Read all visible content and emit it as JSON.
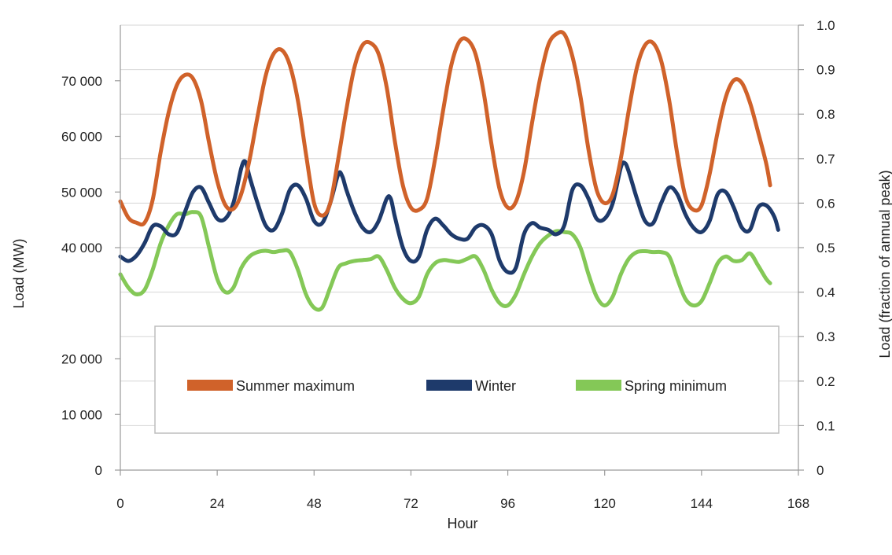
{
  "chart_data": {
    "type": "line",
    "title": "",
    "xlabel": "Hour",
    "ylabel": "Load (MW)",
    "y2label": "Load (fraction of annual peak)",
    "xlim": [
      0,
      168
    ],
    "ylim": [
      0,
      80000
    ],
    "y2lim": [
      0,
      1.0
    ],
    "x_ticks": [
      0,
      24,
      48,
      72,
      96,
      120,
      144,
      168
    ],
    "x_tick_labels": [
      "0",
      "24",
      "48",
      "72",
      "96",
      "120",
      "144",
      "168"
    ],
    "y_ticks": [
      0,
      10000,
      20000,
      40000,
      50000,
      60000,
      70000
    ],
    "y_tick_labels": [
      "0",
      "10 000",
      "20 000",
      "40 000",
      "50 000",
      "60 000",
      "70 000"
    ],
    "y2_ticks": [
      0,
      0.1,
      0.2,
      0.3,
      0.4,
      0.5,
      0.6,
      0.7,
      0.8,
      0.9,
      1.0
    ],
    "y2_tick_labels": [
      "0",
      "0.1",
      "0.2",
      "0.3",
      "0.4",
      "0.5",
      "0.6",
      "0.7",
      "0.8",
      "0.9",
      "1.0"
    ],
    "grid": true,
    "legend_position": "center",
    "series": [
      {
        "name": "Summer maximum",
        "color": "#d0622a",
        "points": [
          [
            0,
            0.604
          ],
          [
            2,
            0.567
          ],
          [
            4,
            0.556
          ],
          [
            6,
            0.556
          ],
          [
            8,
            0.607
          ],
          [
            10,
            0.715
          ],
          [
            12,
            0.805
          ],
          [
            14,
            0.865
          ],
          [
            16,
            0.888
          ],
          [
            18,
            0.88
          ],
          [
            20,
            0.83
          ],
          [
            22,
            0.735
          ],
          [
            24,
            0.65
          ],
          [
            26,
            0.596
          ],
          [
            28,
            0.587
          ],
          [
            30,
            0.622
          ],
          [
            32,
            0.697
          ],
          [
            34,
            0.795
          ],
          [
            36,
            0.886
          ],
          [
            38,
            0.936
          ],
          [
            40,
            0.944
          ],
          [
            42,
            0.91
          ],
          [
            44,
            0.83
          ],
          [
            46,
            0.71
          ],
          [
            48,
            0.6
          ],
          [
            50,
            0.572
          ],
          [
            52,
            0.6
          ],
          [
            54,
            0.7
          ],
          [
            56,
            0.81
          ],
          [
            58,
            0.905
          ],
          [
            60,
            0.955
          ],
          [
            62,
            0.96
          ],
          [
            64,
            0.935
          ],
          [
            66,
            0.86
          ],
          [
            68,
            0.74
          ],
          [
            70,
            0.64
          ],
          [
            72,
            0.59
          ],
          [
            74,
            0.585
          ],
          [
            76,
            0.61
          ],
          [
            78,
            0.7
          ],
          [
            80,
            0.81
          ],
          [
            82,
            0.91
          ],
          [
            84,
            0.963
          ],
          [
            86,
            0.967
          ],
          [
            88,
            0.935
          ],
          [
            90,
            0.85
          ],
          [
            92,
            0.73
          ],
          [
            94,
            0.63
          ],
          [
            96,
            0.59
          ],
          [
            98,
            0.603
          ],
          [
            100,
            0.67
          ],
          [
            102,
            0.78
          ],
          [
            104,
            0.88
          ],
          [
            106,
            0.955
          ],
          [
            108,
            0.98
          ],
          [
            110,
            0.98
          ],
          [
            112,
            0.93
          ],
          [
            114,
            0.84
          ],
          [
            116,
            0.72
          ],
          [
            118,
            0.63
          ],
          [
            120,
            0.6
          ],
          [
            122,
            0.62
          ],
          [
            124,
            0.7
          ],
          [
            126,
            0.81
          ],
          [
            128,
            0.905
          ],
          [
            130,
            0.955
          ],
          [
            132,
            0.96
          ],
          [
            134,
            0.92
          ],
          [
            136,
            0.83
          ],
          [
            138,
            0.71
          ],
          [
            140,
            0.615
          ],
          [
            142,
            0.585
          ],
          [
            144,
            0.595
          ],
          [
            146,
            0.665
          ],
          [
            148,
            0.76
          ],
          [
            150,
            0.838
          ],
          [
            152,
            0.876
          ],
          [
            154,
            0.87
          ],
          [
            156,
            0.826
          ],
          [
            158,
            0.76
          ],
          [
            160,
            0.69
          ],
          [
            161,
            0.64
          ]
        ]
      },
      {
        "name": "Winter",
        "color": "#1e3a6b",
        "points": [
          [
            0,
            0.48
          ],
          [
            2,
            0.47
          ],
          [
            4,
            0.482
          ],
          [
            6,
            0.51
          ],
          [
            8,
            0.548
          ],
          [
            10,
            0.548
          ],
          [
            12,
            0.53
          ],
          [
            14,
            0.533
          ],
          [
            16,
            0.58
          ],
          [
            18,
            0.625
          ],
          [
            20,
            0.635
          ],
          [
            22,
            0.6
          ],
          [
            24,
            0.565
          ],
          [
            26,
            0.565
          ],
          [
            28,
            0.6
          ],
          [
            30,
            0.68
          ],
          [
            31,
            0.693
          ],
          [
            32,
            0.66
          ],
          [
            34,
            0.6
          ],
          [
            36,
            0.55
          ],
          [
            38,
            0.54
          ],
          [
            40,
            0.575
          ],
          [
            42,
            0.63
          ],
          [
            44,
            0.64
          ],
          [
            46,
            0.61
          ],
          [
            48,
            0.56
          ],
          [
            50,
            0.555
          ],
          [
            52,
            0.6
          ],
          [
            54,
            0.665
          ],
          [
            55,
            0.66
          ],
          [
            56,
            0.63
          ],
          [
            58,
            0.58
          ],
          [
            60,
            0.545
          ],
          [
            62,
            0.535
          ],
          [
            64,
            0.56
          ],
          [
            66,
            0.61
          ],
          [
            67,
            0.61
          ],
          [
            68,
            0.57
          ],
          [
            70,
            0.5
          ],
          [
            72,
            0.47
          ],
          [
            74,
            0.48
          ],
          [
            76,
            0.54
          ],
          [
            78,
            0.565
          ],
          [
            80,
            0.55
          ],
          [
            82,
            0.53
          ],
          [
            84,
            0.52
          ],
          [
            86,
            0.52
          ],
          [
            88,
            0.545
          ],
          [
            90,
            0.55
          ],
          [
            92,
            0.53
          ],
          [
            94,
            0.47
          ],
          [
            96,
            0.445
          ],
          [
            98,
            0.455
          ],
          [
            100,
            0.53
          ],
          [
            102,
            0.555
          ],
          [
            104,
            0.545
          ],
          [
            106,
            0.54
          ],
          [
            108,
            0.53
          ],
          [
            110,
            0.55
          ],
          [
            112,
            0.63
          ],
          [
            114,
            0.64
          ],
          [
            116,
            0.61
          ],
          [
            118,
            0.565
          ],
          [
            120,
            0.565
          ],
          [
            122,
            0.6
          ],
          [
            124,
            0.68
          ],
          [
            125,
            0.69
          ],
          [
            126,
            0.67
          ],
          [
            128,
            0.61
          ],
          [
            130,
            0.56
          ],
          [
            132,
            0.555
          ],
          [
            134,
            0.6
          ],
          [
            136,
            0.635
          ],
          [
            138,
            0.62
          ],
          [
            140,
            0.575
          ],
          [
            142,
            0.545
          ],
          [
            144,
            0.535
          ],
          [
            146,
            0.56
          ],
          [
            148,
            0.62
          ],
          [
            150,
            0.625
          ],
          [
            152,
            0.59
          ],
          [
            154,
            0.545
          ],
          [
            156,
            0.54
          ],
          [
            158,
            0.59
          ],
          [
            160,
            0.595
          ],
          [
            162,
            0.57
          ],
          [
            163,
            0.54
          ]
        ]
      },
      {
        "name": "Spring minimum",
        "color": "#84c857",
        "points": [
          [
            0,
            0.44
          ],
          [
            2,
            0.41
          ],
          [
            4,
            0.395
          ],
          [
            6,
            0.405
          ],
          [
            8,
            0.45
          ],
          [
            10,
            0.51
          ],
          [
            12,
            0.55
          ],
          [
            14,
            0.575
          ],
          [
            16,
            0.575
          ],
          [
            18,
            0.58
          ],
          [
            20,
            0.57
          ],
          [
            22,
            0.5
          ],
          [
            24,
            0.43
          ],
          [
            26,
            0.4
          ],
          [
            28,
            0.41
          ],
          [
            30,
            0.455
          ],
          [
            32,
            0.48
          ],
          [
            34,
            0.49
          ],
          [
            36,
            0.493
          ],
          [
            38,
            0.49
          ],
          [
            40,
            0.493
          ],
          [
            42,
            0.49
          ],
          [
            44,
            0.45
          ],
          [
            46,
            0.395
          ],
          [
            48,
            0.365
          ],
          [
            50,
            0.365
          ],
          [
            52,
            0.41
          ],
          [
            54,
            0.455
          ],
          [
            56,
            0.465
          ],
          [
            58,
            0.47
          ],
          [
            60,
            0.472
          ],
          [
            62,
            0.474
          ],
          [
            64,
            0.48
          ],
          [
            66,
            0.45
          ],
          [
            68,
            0.41
          ],
          [
            70,
            0.385
          ],
          [
            72,
            0.375
          ],
          [
            74,
            0.39
          ],
          [
            76,
            0.44
          ],
          [
            78,
            0.465
          ],
          [
            80,
            0.472
          ],
          [
            82,
            0.47
          ],
          [
            84,
            0.468
          ],
          [
            86,
            0.475
          ],
          [
            88,
            0.48
          ],
          [
            90,
            0.45
          ],
          [
            92,
            0.405
          ],
          [
            94,
            0.375
          ],
          [
            96,
            0.37
          ],
          [
            98,
            0.395
          ],
          [
            100,
            0.44
          ],
          [
            102,
            0.48
          ],
          [
            104,
            0.51
          ],
          [
            106,
            0.527
          ],
          [
            108,
            0.537
          ],
          [
            110,
            0.535
          ],
          [
            112,
            0.53
          ],
          [
            114,
            0.5
          ],
          [
            116,
            0.44
          ],
          [
            118,
            0.39
          ],
          [
            120,
            0.37
          ],
          [
            122,
            0.39
          ],
          [
            124,
            0.44
          ],
          [
            126,
            0.475
          ],
          [
            128,
            0.49
          ],
          [
            130,
            0.492
          ],
          [
            132,
            0.49
          ],
          [
            134,
            0.49
          ],
          [
            136,
            0.48
          ],
          [
            138,
            0.43
          ],
          [
            140,
            0.385
          ],
          [
            142,
            0.37
          ],
          [
            144,
            0.38
          ],
          [
            146,
            0.42
          ],
          [
            148,
            0.465
          ],
          [
            150,
            0.48
          ],
          [
            152,
            0.47
          ],
          [
            154,
            0.472
          ],
          [
            156,
            0.487
          ],
          [
            158,
            0.46
          ],
          [
            160,
            0.43
          ],
          [
            161,
            0.42
          ]
        ]
      }
    ]
  }
}
